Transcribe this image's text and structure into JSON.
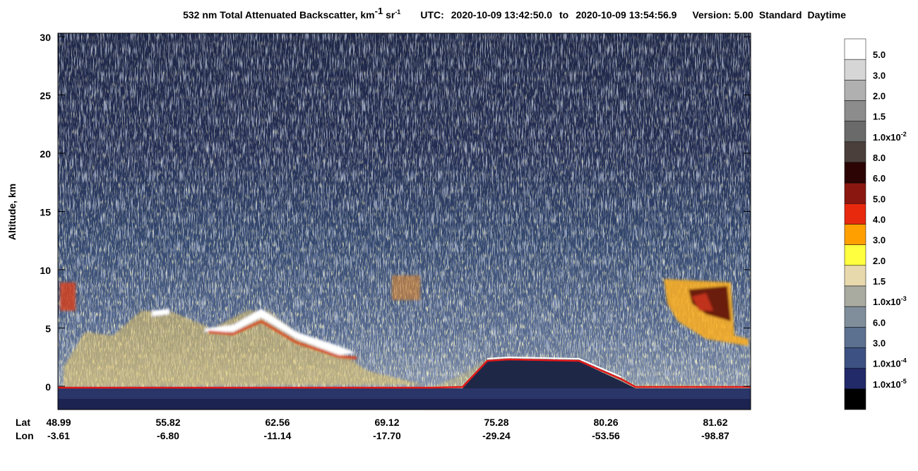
{
  "chart_data": {
    "type": "curtain",
    "title": {
      "text": "532 nm Total Attenuated Backscatter, km",
      "exp1": "-1",
      "unit2": " sr",
      "exp2": "-1",
      "utc": "UTC:",
      "start": "2020-10-09 13:42:50.0",
      "to": "to",
      "end": "2020-10-09 13:54:56.9",
      "version": "Version: 5.00",
      "product": "Standard",
      "mode": "Daytime"
    },
    "y_label": "Altitude, km",
    "ylim": [
      -2,
      30.3
    ],
    "yticks": [
      0,
      5,
      10,
      15,
      20,
      25,
      30
    ],
    "x_rows": [
      {
        "name": "Lat",
        "values": [
          48.99,
          55.82,
          62.56,
          69.12,
          75.28,
          80.26,
          81.62
        ]
      },
      {
        "name": "Lon",
        "values": [
          -3.61,
          -6.8,
          -11.14,
          -17.7,
          -29.24,
          -53.56,
          -98.87
        ],
        "value_labels": [
          "-3.61",
          "-6.80",
          "-11.14",
          "-17.70",
          "-29.24",
          "-53.56",
          "-98.87"
        ]
      }
    ],
    "colorbar": {
      "colors": [
        "#ffffff",
        "#d6d6d6",
        "#b0b0b0",
        "#8c8c8c",
        "#6a6a6a",
        "#4a3f3b",
        "#2c0404",
        "#8a1810",
        "#e8290e",
        "#ffa000",
        "#ffff40",
        "#e8d9ad",
        "#a9aaa0",
        "#7f8e9a",
        "#5c7090",
        "#3d5283",
        "#222a6a",
        "#000000"
      ],
      "labels": [
        "5.0",
        "3.0",
        "2.0",
        "1.5",
        {
          "text": "1.0x10",
          "sup": "-2"
        },
        "8.0",
        "6.0",
        "5.0",
        "4.0",
        "3.0",
        "2.0",
        "1.5",
        {
          "text": "1.0x10",
          "sup": "-3"
        },
        "6.0",
        "3.0",
        {
          "text": "1.0x10",
          "sup": "-4"
        },
        {
          "text": "1.0x10",
          "sup": "-5"
        }
      ]
    }
  }
}
